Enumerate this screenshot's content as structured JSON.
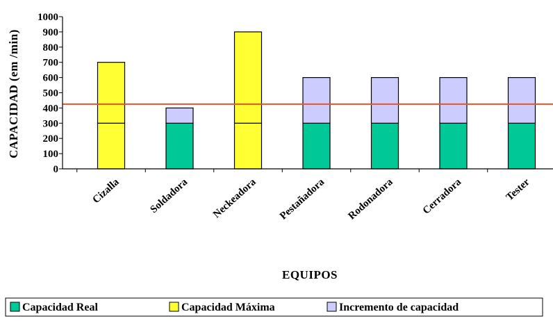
{
  "chart_data": {
    "type": "bar",
    "stacked": true,
    "title": "",
    "xlabel": "EQUIPOS",
    "ylabel": "CAPACIDAD (em /min)",
    "ylim": [
      0,
      1000
    ],
    "ytick_step": 100,
    "categories": [
      "Cizalla",
      "Soldadora",
      "Neckeadora",
      "Pestañadora",
      "Rodonadora",
      "Cerradora",
      "Tester"
    ],
    "segments": [
      {
        "category": "Cizalla",
        "series": "Capacidad Máxima",
        "from": 0,
        "to": 300
      },
      {
        "category": "Cizalla",
        "series": "Capacidad Máxima",
        "from": 300,
        "to": 700
      },
      {
        "category": "Soldadora",
        "series": "Capacidad Real",
        "from": 0,
        "to": 300
      },
      {
        "category": "Soldadora",
        "series": "Incremento de capacidad",
        "from": 300,
        "to": 400
      },
      {
        "category": "Neckeadora",
        "series": "Capacidad Máxima",
        "from": 0,
        "to": 300
      },
      {
        "category": "Neckeadora",
        "series": "Capacidad Máxima",
        "from": 300,
        "to": 900
      },
      {
        "category": "Pestañadora",
        "series": "Capacidad Real",
        "from": 0,
        "to": 300
      },
      {
        "category": "Pestañadora",
        "series": "Incremento de capacidad",
        "from": 300,
        "to": 600
      },
      {
        "category": "Rodonadora",
        "series": "Capacidad Real",
        "from": 0,
        "to": 300
      },
      {
        "category": "Rodonadora",
        "series": "Incremento de capacidad",
        "from": 300,
        "to": 600
      },
      {
        "category": "Cerradora",
        "series": "Capacidad Real",
        "from": 0,
        "to": 300
      },
      {
        "category": "Cerradora",
        "series": "Incremento de capacidad",
        "from": 300,
        "to": 600
      },
      {
        "category": "Tester",
        "series": "Capacidad Real",
        "from": 0,
        "to": 300
      },
      {
        "category": "Tester",
        "series": "Incremento de capacidad",
        "from": 300,
        "to": 600
      }
    ],
    "reference_line": {
      "value": 425,
      "color": "#e8532a"
    },
    "legend": {
      "position": "bottom",
      "items": [
        {
          "name": "Capacidad Real",
          "color": "#00c896"
        },
        {
          "name": "Capacidad Máxima",
          "color": "#ffff33"
        },
        {
          "name": "Incremento de capacidad",
          "color": "#ccccff"
        }
      ]
    },
    "grid": false
  }
}
